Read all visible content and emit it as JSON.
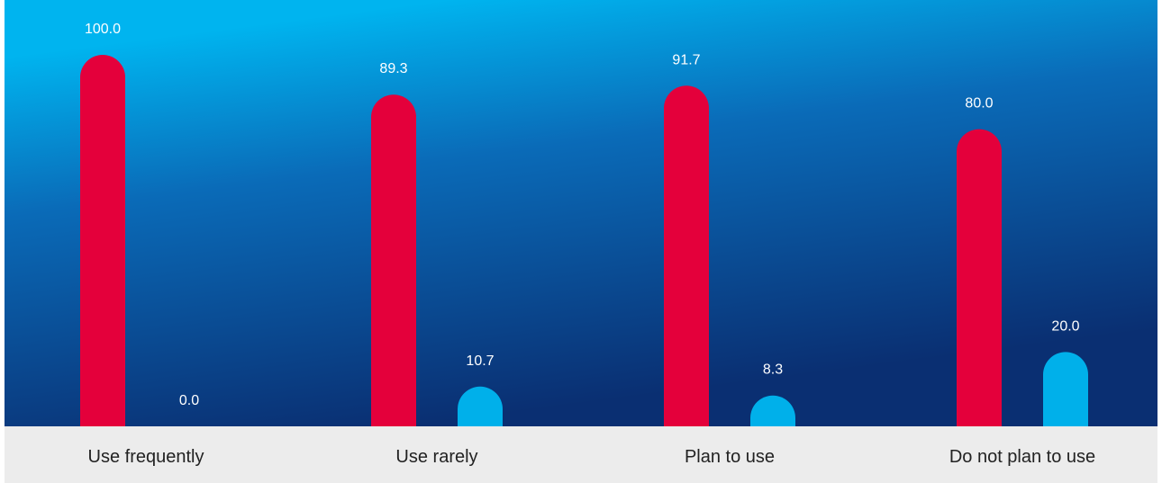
{
  "colors": {
    "series_a": "#e4003b",
    "series_b": "#00b0ea",
    "bg_top": "#00b4ef",
    "bg_bottom": "#0a2f72",
    "category_band": "#ececec",
    "value_label": "#ffffff",
    "category_label": "#222222"
  },
  "chart_data": {
    "type": "bar",
    "categories": [
      "Use frequently",
      "Use rarely",
      "Plan to use",
      "Do not plan to use"
    ],
    "series": [
      {
        "values": [
          100.0,
          89.3,
          91.7,
          80.0
        ],
        "color": "#e4003b"
      },
      {
        "values": [
          0.0,
          10.7,
          8.3,
          20.0
        ],
        "color": "#00b0ea"
      }
    ],
    "value_labels": [
      [
        "100.0",
        "89.3",
        "91.7",
        "80.0"
      ],
      [
        "0.0",
        "10.7",
        "8.3",
        "20.0"
      ]
    ],
    "ylim": [
      0,
      100
    ],
    "grid": false,
    "bar_style": "rounded-top"
  }
}
